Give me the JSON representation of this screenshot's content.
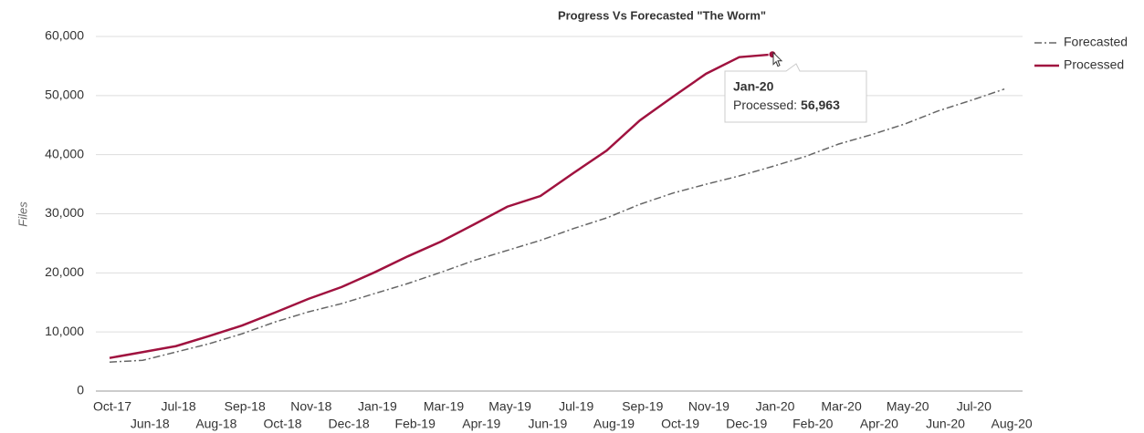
{
  "chart_data": {
    "type": "line",
    "title": "Progress Vs Forecasted \"The Worm\"",
    "y_label": "Files",
    "categories": [
      "Oct-17",
      "Jun-18",
      "Jul-18",
      "Aug-18",
      "Sep-18",
      "Oct-18",
      "Nov-18",
      "Dec-18",
      "Jan-19",
      "Feb-19",
      "Mar-19",
      "Apr-19",
      "May-19",
      "Jun-19",
      "Jul-19",
      "Aug-19",
      "Sep-19",
      "Oct-19",
      "Nov-19",
      "Dec-19",
      "Jan-20",
      "Feb-20",
      "Mar-20",
      "Apr-20",
      "May-20",
      "Jun-20",
      "Jul-20",
      "Aug-20"
    ],
    "series": [
      {
        "name": "Forecasted",
        "color": "#666666",
        "dash": "dash-dot",
        "values": [
          4900,
          5200,
          6600,
          8000,
          9700,
          11700,
          13400,
          14800,
          16500,
          18200,
          20100,
          22100,
          23800,
          25500,
          27500,
          29300,
          31600,
          33500,
          35000,
          36400,
          38000,
          39700,
          41800,
          43400,
          45200,
          47400,
          49200,
          51100
        ]
      },
      {
        "name": "Processed",
        "color": "#a0123f",
        "dash": "solid",
        "values": [
          5600,
          6600,
          7600,
          9300,
          11100,
          13300,
          15600,
          17600,
          20100,
          22800,
          25300,
          28200,
          31200,
          33000,
          36900,
          40700,
          45800,
          49800,
          53700,
          56500,
          56963,
          null,
          null,
          null,
          null,
          null,
          null,
          null
        ]
      }
    ],
    "ylim": [
      0,
      60000
    ],
    "yticks": [
      0,
      {
        "value": 10000,
        "label": "10,000"
      },
      {
        "value": 20000,
        "label": "20,000"
      },
      {
        "value": 30000,
        "label": "30,000"
      },
      {
        "value": 40000,
        "label": "40,000"
      },
      {
        "value": 50000,
        "label": "50,000"
      },
      {
        "value": 60000,
        "label": "60,000"
      }
    ],
    "grid": true,
    "legend": "top-right",
    "tooltip": {
      "series": 1,
      "index": 20,
      "label": "Processed:",
      "value_label": "56,963"
    }
  }
}
